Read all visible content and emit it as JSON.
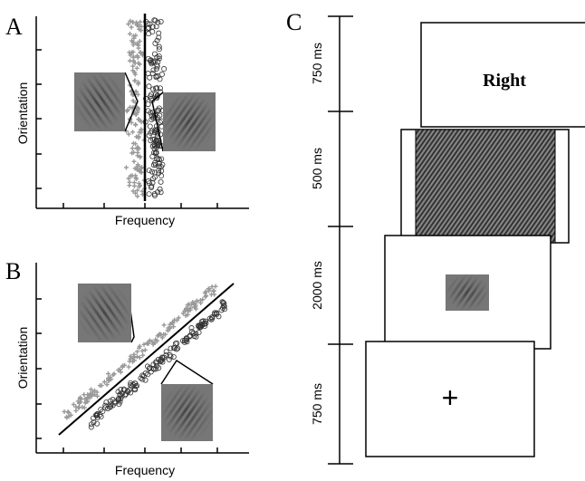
{
  "panel_a": {
    "label": "A",
    "x_label": "Frequency",
    "y_label": "Orientation"
  },
  "panel_b": {
    "label": "B",
    "x_label": "Frequency",
    "y_label": "Orientation"
  },
  "panel_c": {
    "label": "C",
    "steps": [
      {
        "duration": "750 ms",
        "content": "Right"
      },
      {
        "duration": "500 ms"
      },
      {
        "duration": "2000 ms"
      },
      {
        "duration": "750 ms",
        "content": "+"
      }
    ]
  }
}
